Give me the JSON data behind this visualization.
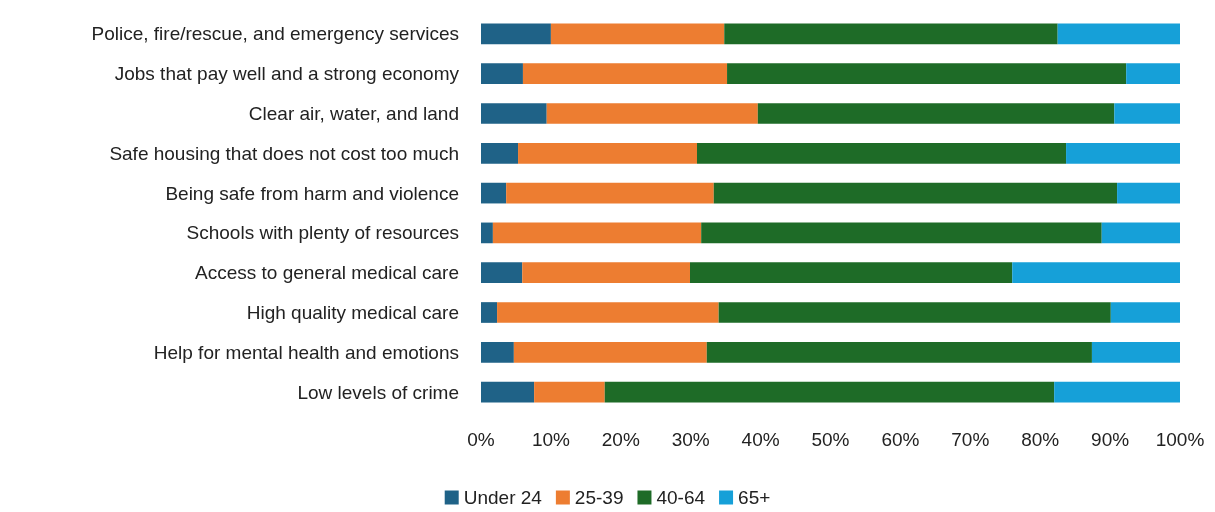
{
  "chart_data": {
    "type": "bar",
    "orientation": "horizontal",
    "stacked": true,
    "legend": "bottom",
    "grid": false,
    "categories": [
      "Police, fire/rescue, and emergency services",
      "Jobs that pay well and a strong economy",
      "Clear air, water, and land",
      "Safe housing that does not cost too much",
      "Being safe from harm and violence",
      "Schools with plenty of resources",
      "Access to general medical care",
      "High quality medical care",
      "Help for mental health and emotions",
      "Low levels of crime"
    ],
    "series": [
      {
        "name": "Under 24",
        "color": "#1f6287",
        "values": [
          10.0,
          6.0,
          9.4,
          5.3,
          3.6,
          1.7,
          5.9,
          2.3,
          4.7,
          7.6
        ]
      },
      {
        "name": "25-39",
        "color": "#ed7d31",
        "values": [
          24.8,
          29.2,
          30.2,
          25.6,
          29.7,
          29.8,
          24.0,
          31.7,
          27.6,
          10.1
        ]
      },
      {
        "name": "40-64",
        "color": "#1e6b27",
        "values": [
          47.7,
          57.1,
          51.0,
          52.8,
          57.7,
          57.3,
          46.1,
          56.1,
          55.1,
          64.3
        ]
      },
      {
        "name": "65+",
        "color": "#16a0d8",
        "values": [
          17.5,
          7.7,
          9.4,
          16.3,
          9.0,
          11.2,
          24.0,
          9.9,
          12.6,
          18.0
        ]
      }
    ],
    "xlim": [
      0,
      100
    ],
    "xticks": [
      {
        "value": 0,
        "label": "0%"
      },
      {
        "value": 10,
        "label": "10%"
      },
      {
        "value": 20,
        "label": "20%"
      },
      {
        "value": 30,
        "label": "30%"
      },
      {
        "value": 40,
        "label": "40%"
      },
      {
        "value": 50,
        "label": "50%"
      },
      {
        "value": 60,
        "label": "60%"
      },
      {
        "value": 70,
        "label": "70%"
      },
      {
        "value": 80,
        "label": "80%"
      },
      {
        "value": 90,
        "label": "90%"
      },
      {
        "value": 100,
        "label": "100%"
      }
    ]
  }
}
